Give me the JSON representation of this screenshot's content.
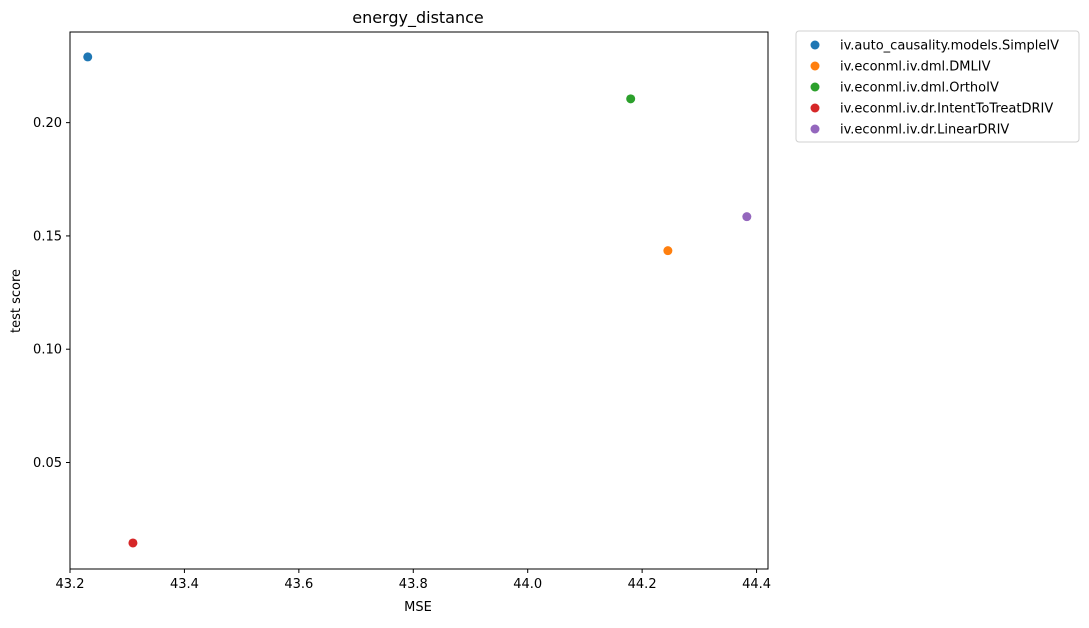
{
  "chart_data": {
    "type": "scatter",
    "title": "energy_distance",
    "xlabel": "MSE",
    "ylabel": "test score",
    "xlim": [
      43.2,
      44.42
    ],
    "ylim": [
      0.003,
      0.24
    ],
    "xticks": [
      43.2,
      43.4,
      43.6,
      43.8,
      44.0,
      44.2,
      44.4
    ],
    "xtick_labels": [
      "43.2",
      "43.4",
      "43.6",
      "43.8",
      "44.0",
      "44.2",
      "44.4"
    ],
    "yticks": [
      0.05,
      0.1,
      0.15,
      0.2
    ],
    "ytick_labels": [
      "0.05",
      "0.10",
      "0.15",
      "0.20"
    ],
    "grid": false,
    "legend_position": "outside-top-right",
    "series": [
      {
        "name": "iv.auto_causality.models.SimpleIV",
        "color": "#1f77b4",
        "x": [
          43.231
        ],
        "y": [
          0.229
        ]
      },
      {
        "name": "iv.econml.iv.dml.DMLIV",
        "color": "#ff7f0e",
        "x": [
          44.245
        ],
        "y": [
          0.1435
        ]
      },
      {
        "name": "iv.econml.iv.dml.OrthoIV",
        "color": "#2ca02c",
        "x": [
          44.18
        ],
        "y": [
          0.2105
        ]
      },
      {
        "name": "iv.econml.iv.dr.IntentToTreatDRIV",
        "color": "#d62728",
        "x": [
          43.31
        ],
        "y": [
          0.0145
        ]
      },
      {
        "name": "iv.econml.iv.dr.LinearDRIV",
        "color": "#9467bd",
        "x": [
          44.383
        ],
        "y": [
          0.1585
        ]
      }
    ]
  }
}
